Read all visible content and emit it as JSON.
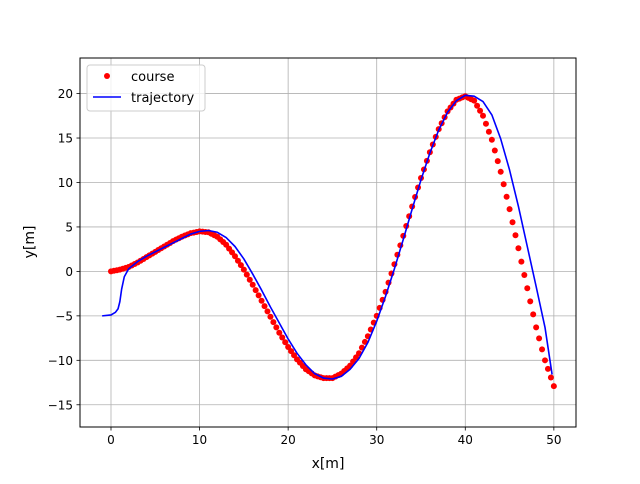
{
  "chart_data": {
    "type": "line",
    "title": "",
    "xlabel": "x[m]",
    "ylabel": "y[m]",
    "xlim": [
      -3.5,
      52.5
    ],
    "ylim": [
      -17.5,
      24
    ],
    "grid": true,
    "legend_position": "top-left",
    "x_ticks": [
      0,
      10,
      20,
      30,
      40,
      50
    ],
    "y_ticks": [
      -15,
      -10,
      -5,
      0,
      5,
      10,
      15,
      20
    ],
    "x_tick_labels": [
      "0",
      "10",
      "20",
      "30",
      "40",
      "50"
    ],
    "y_tick_labels": [
      "−15",
      "−10",
      "−5",
      "0",
      "5",
      "10",
      "15",
      "20"
    ],
    "series": [
      {
        "name": "course",
        "style": "points",
        "color": "#ff0000",
        "x": [
          0,
          1,
          2,
          3,
          4,
          5,
          6,
          7,
          8,
          9,
          10,
          11,
          12,
          13,
          14,
          15,
          16,
          17,
          18,
          19,
          20,
          21,
          22,
          23,
          24,
          25,
          26,
          27,
          28,
          29,
          30,
          31,
          32,
          33,
          34,
          35,
          36,
          37,
          38,
          39,
          40,
          41,
          42,
          43,
          44,
          45,
          46,
          47,
          48,
          49,
          50
        ],
        "y": [
          0.0,
          0.2,
          0.5,
          1.0,
          1.6,
          2.2,
          2.8,
          3.4,
          3.9,
          4.3,
          4.5,
          4.4,
          3.9,
          3.0,
          1.7,
          0.2,
          -1.5,
          -3.3,
          -5.1,
          -6.9,
          -8.5,
          -9.9,
          -11.0,
          -11.7,
          -12.0,
          -12.0,
          -11.5,
          -10.6,
          -9.2,
          -7.3,
          -5.0,
          -2.3,
          0.8,
          4.0,
          7.3,
          10.5,
          13.4,
          16.0,
          18.0,
          19.3,
          19.7,
          19.2,
          17.5,
          14.8,
          11.2,
          7.0,
          2.6,
          -1.9,
          -6.3,
          -10.0,
          -12.9
        ]
      },
      {
        "name": "trajectory",
        "style": "line",
        "color": "#0000ff",
        "x": [
          -1.0,
          0.0,
          0.5,
          0.8,
          1.0,
          1.2,
          1.5,
          2.0,
          3.0,
          4.0,
          5.0,
          6.0,
          7.0,
          8.0,
          9.0,
          10.0,
          11.0,
          12.0,
          13.0,
          14.0,
          15.0,
          16.0,
          17.0,
          18.0,
          19.0,
          20.0,
          21.0,
          22.0,
          23.0,
          24.0,
          25.0,
          26.0,
          27.0,
          28.0,
          29.0,
          30.0,
          31.0,
          32.0,
          33.0,
          34.0,
          35.0,
          36.0,
          37.0,
          38.0,
          39.0,
          40.0,
          41.0,
          42.0,
          43.0,
          44.0,
          45.0,
          46.0,
          47.0,
          48.0,
          49.0,
          49.8
        ],
        "y": [
          -5.0,
          -4.9,
          -4.6,
          -4.2,
          -3.4,
          -2.0,
          -0.6,
          0.3,
          1.1,
          1.7,
          2.2,
          2.7,
          3.2,
          3.7,
          4.2,
          4.5,
          4.6,
          4.4,
          3.8,
          2.8,
          1.4,
          -0.3,
          -2.1,
          -4.0,
          -5.8,
          -7.6,
          -9.2,
          -10.5,
          -11.5,
          -12.0,
          -12.1,
          -11.8,
          -11.0,
          -9.8,
          -8.0,
          -5.6,
          -2.8,
          0.3,
          3.6,
          7.0,
          10.3,
          13.3,
          15.9,
          17.9,
          19.2,
          19.8,
          19.7,
          19.1,
          17.6,
          14.9,
          11.4,
          7.3,
          2.8,
          -1.7,
          -6.3,
          -11.6
        ]
      }
    ]
  }
}
